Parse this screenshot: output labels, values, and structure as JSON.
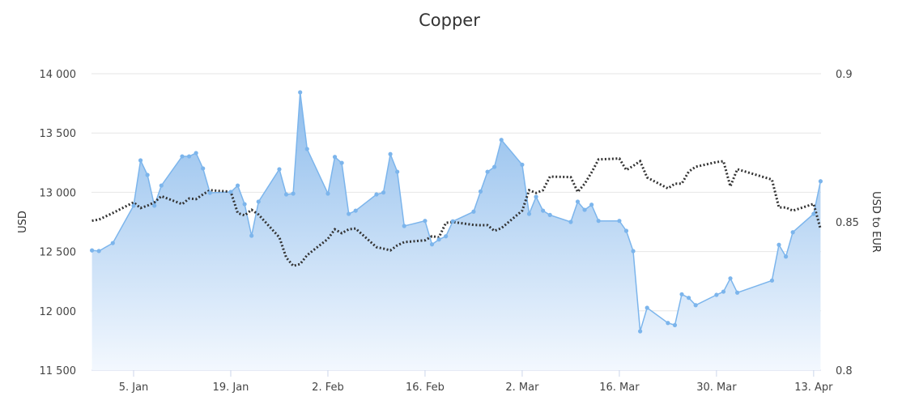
{
  "chart_data": {
    "type": "area",
    "title": "Copper",
    "ylabel": "USD",
    "y2label": "USD to EUR",
    "ylim": [
      11500,
      14000
    ],
    "y2lim": [
      0.8,
      0.9
    ],
    "yticks": [
      "11 500",
      "12 000",
      "12 500",
      "13 000",
      "13 500",
      "14 000"
    ],
    "ytick_values": [
      11500,
      12000,
      12500,
      13000,
      13500,
      14000
    ],
    "y2ticks": [
      "0.8",
      "0.85",
      "0.9"
    ],
    "y2tick_values": [
      0.8,
      0.85,
      0.9
    ],
    "xticks": [
      "5. Jan",
      "19. Jan",
      "2. Feb",
      "16. Feb",
      "2. Mar",
      "16. Mar",
      "30. Mar",
      "13. Apr"
    ],
    "grid": true,
    "colors": {
      "copper": "#7cb5ec",
      "fx": "#333333"
    },
    "x": [
      "30. Dec",
      "31. Dec",
      "2. Jan",
      "5. Jan",
      "6. Jan",
      "7. Jan",
      "8. Jan",
      "9. Jan",
      "12. Jan",
      "13. Jan",
      "14. Jan",
      "15. Jan",
      "16. Jan",
      "19. Jan",
      "20. Jan",
      "21. Jan",
      "22. Jan",
      "23. Jan",
      "26. Jan",
      "27. Jan",
      "28. Jan",
      "29. Jan",
      "30. Jan",
      "2. Feb",
      "3. Feb",
      "4. Feb",
      "5. Feb",
      "6. Feb",
      "9. Feb",
      "10. Feb",
      "11. Feb",
      "12. Feb",
      "13. Feb",
      "16. Feb",
      "17. Feb",
      "18. Feb",
      "19. Feb",
      "20. Feb",
      "23. Feb",
      "24. Feb",
      "25. Feb",
      "26. Feb",
      "27. Feb",
      "2. Mar",
      "3. Mar",
      "4. Mar",
      "5. Mar",
      "6. Mar",
      "9. Mar",
      "10. Mar",
      "11. Mar",
      "12. Mar",
      "13. Mar",
      "16. Mar",
      "17. Mar",
      "18. Mar",
      "19. Mar",
      "20. Mar",
      "23. Mar",
      "24. Mar",
      "25. Mar",
      "26. Mar",
      "27. Mar",
      "30. Mar",
      "31. Mar",
      "1. Apr",
      "2. Apr",
      "7. Apr",
      "8. Apr",
      "9. Apr",
      "10. Apr",
      "13. Apr",
      "14. Apr"
    ],
    "series": [
      {
        "axis": "left",
        "style": "area",
        "values": [
          12510,
          12505,
          12572,
          12887,
          13269,
          13146,
          12887,
          13057,
          13303,
          13303,
          13331,
          13201,
          12996,
          13003,
          13057,
          12900,
          12634,
          12921,
          13194,
          12982,
          12989,
          13843,
          13365,
          12989,
          13298,
          13248,
          12818,
          12845,
          12982,
          12998,
          13322,
          13173,
          12716,
          12759,
          12561,
          12602,
          12629,
          12755,
          12837,
          13007,
          13173,
          13214,
          13442,
          13233,
          12818,
          12962,
          12845,
          12809,
          12750,
          12921,
          12852,
          12895,
          12759,
          12759,
          12675,
          12504,
          11828,
          12026,
          11898,
          11880,
          12140,
          12110,
          12048,
          12135,
          12162,
          12274,
          12154,
          12256,
          12557,
          12458,
          12663,
          12818,
          13093
        ]
      },
      {
        "axis": "right",
        "style": "dotted-line",
        "values": [
          0.8504,
          0.8508,
          0.853,
          0.8566,
          0.8547,
          0.8555,
          0.8566,
          0.8587,
          0.856,
          0.8579,
          0.8577,
          0.8593,
          0.8607,
          0.8602,
          0.853,
          0.8522,
          0.8541,
          0.8525,
          0.8448,
          0.838,
          0.8352,
          0.8358,
          0.8388,
          0.8443,
          0.8475,
          0.8462,
          0.8475,
          0.8478,
          0.8415,
          0.841,
          0.8404,
          0.8421,
          0.8432,
          0.8438,
          0.8452,
          0.8448,
          0.8497,
          0.85,
          0.849,
          0.8489,
          0.8489,
          0.847,
          0.8479,
          0.8538,
          0.8607,
          0.8598,
          0.8607,
          0.8653,
          0.8651,
          0.8601,
          0.8629,
          0.8667,
          0.8711,
          0.8714,
          0.8675,
          0.8689,
          0.8705,
          0.865,
          0.8613,
          0.8629,
          0.8629,
          0.867,
          0.8686,
          0.8702,
          0.8705,
          0.862,
          0.8678,
          0.8643,
          0.8549,
          0.8549,
          0.8538,
          0.8561,
          0.8476
        ]
      }
    ]
  }
}
